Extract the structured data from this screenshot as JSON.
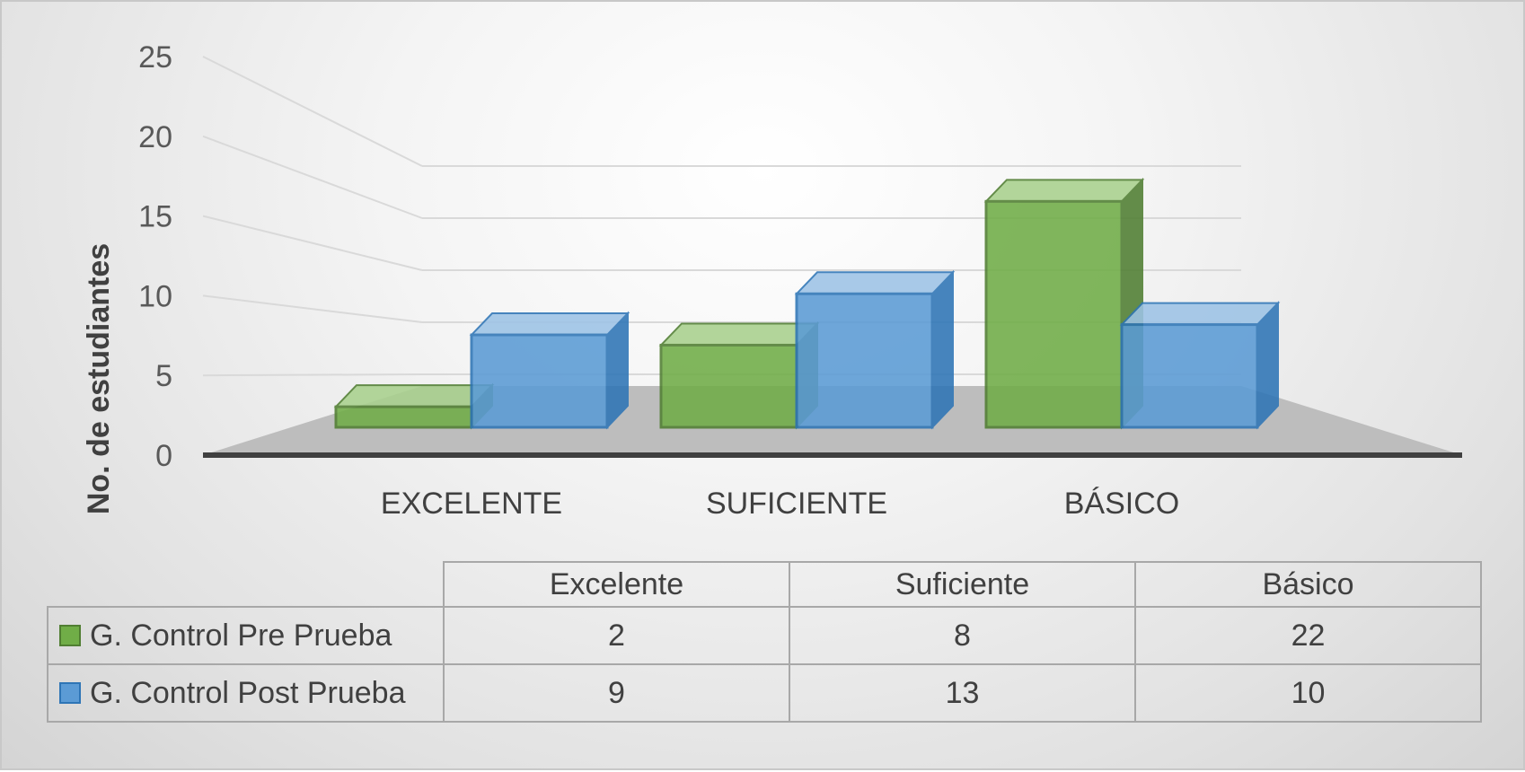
{
  "chart_data": {
    "type": "bar",
    "categories": [
      "EXCELENTE",
      "SUFICIENTE",
      "BÁSICO"
    ],
    "series": [
      {
        "name": "G. Control Pre Prueba",
        "values": [
          2,
          8,
          22
        ],
        "color": "#70ad47"
      },
      {
        "name": "G. Control Post Prueba",
        "values": [
          9,
          13,
          10
        ],
        "color": "#5b9bd5"
      }
    ],
    "ylabel": "No. de estudiantes",
    "ylim": [
      0,
      25
    ],
    "yticks": [
      0,
      5,
      10,
      15,
      20,
      25
    ],
    "grid": true,
    "legend": "data-table",
    "style": "3d-clustered-column",
    "table": {
      "headers": [
        "Excelente",
        "Suficiente",
        "Básico"
      ],
      "rows": [
        {
          "name": "G. Control Pre Prueba",
          "values": [
            "2",
            "8",
            "22"
          ]
        },
        {
          "name": "G. Control Post Prueba",
          "values": [
            "9",
            "13",
            "10"
          ]
        }
      ]
    }
  }
}
